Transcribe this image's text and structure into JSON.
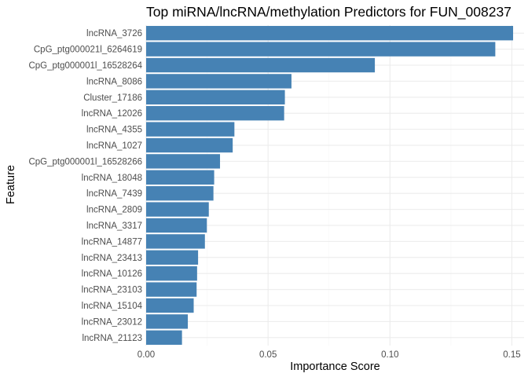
{
  "chart_data": {
    "type": "bar",
    "orientation": "horizontal",
    "title": "Top miRNA/lncRNA/methylation Predictors for FUN_008237",
    "xlabel": "Importance Score",
    "ylabel": "Feature",
    "xlim": [
      0,
      0.155
    ],
    "x_ticks": [
      0,
      0.05,
      0.1,
      0.15
    ],
    "x_tick_labels": [
      "0.00",
      "0.05",
      "0.10",
      "0.15"
    ],
    "grid": true,
    "legend": "none",
    "bar_color": "#4682B4",
    "categories": [
      "lncRNA_3726",
      "CpG_ptg000021l_6264619",
      "CpG_ptg000001l_16528264",
      "lncRNA_8086",
      "Cluster_17186",
      "lncRNA_12026",
      "lncRNA_4355",
      "lncRNA_1027",
      "CpG_ptg000001l_16528266",
      "lncRNA_18048",
      "lncRNA_7439",
      "lncRNA_2809",
      "lncRNA_3317",
      "lncRNA_14877",
      "lncRNA_23413",
      "lncRNA_10126",
      "lncRNA_23103",
      "lncRNA_15104",
      "lncRNA_23012",
      "lncRNA_21123"
    ],
    "values": [
      0.1505,
      0.1432,
      0.0938,
      0.0596,
      0.0569,
      0.0566,
      0.0362,
      0.0355,
      0.0303,
      0.0279,
      0.0276,
      0.0257,
      0.0249,
      0.0241,
      0.0213,
      0.0209,
      0.0207,
      0.0195,
      0.0171,
      0.0147
    ]
  }
}
